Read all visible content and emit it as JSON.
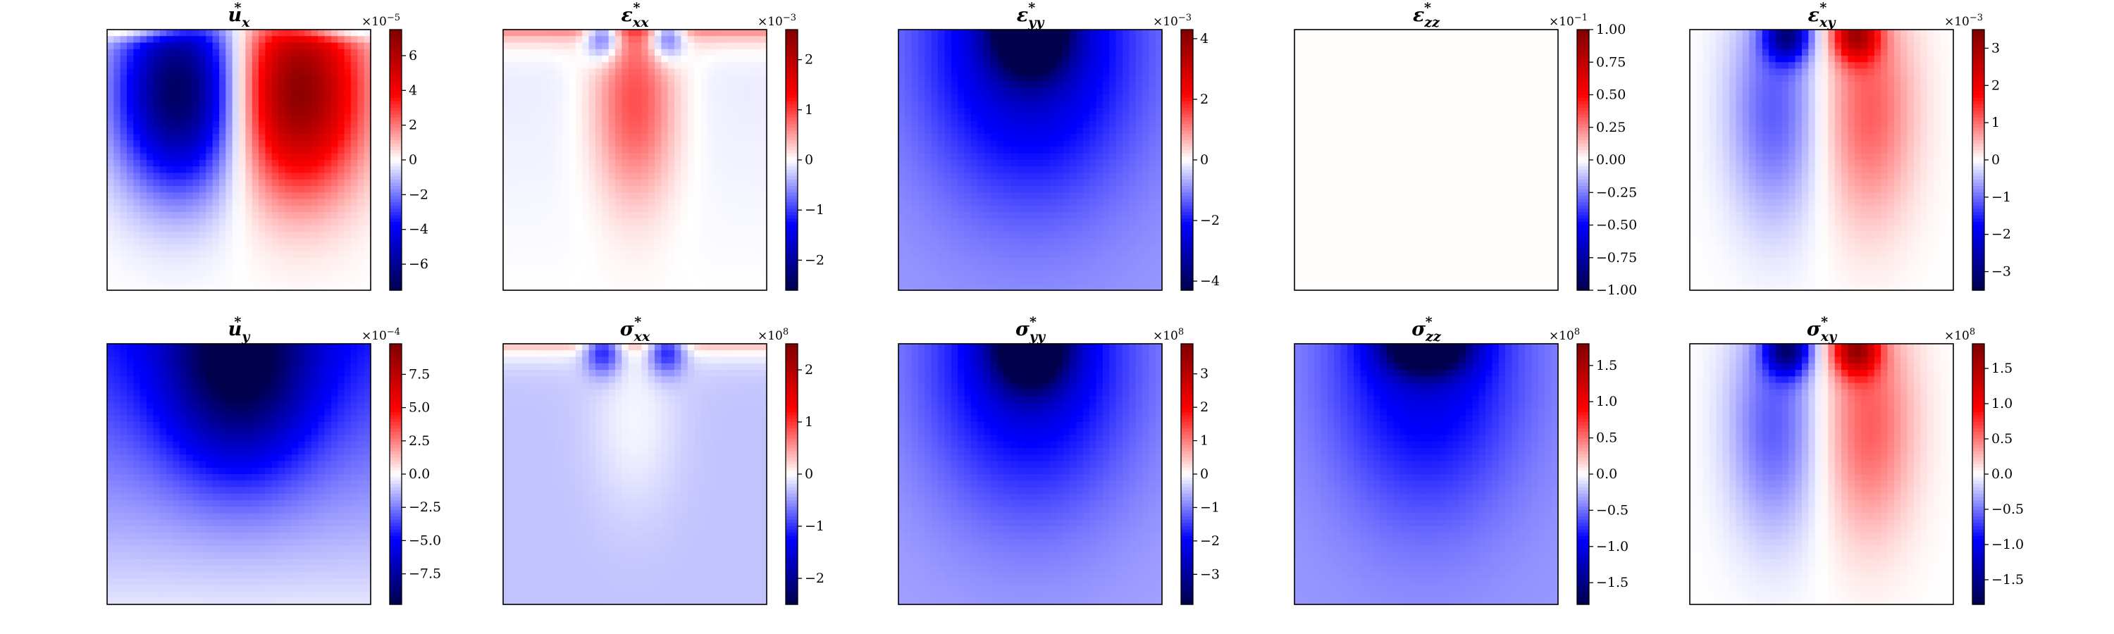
{
  "colormap": {
    "name": "seismic",
    "stops": [
      "#00004c",
      "#0000ff",
      "#ffffff",
      "#ff0000",
      "#7f0000"
    ]
  },
  "chart_data": [
    {
      "type": "heatmap",
      "field": "ux",
      "title": "u",
      "sub": "x",
      "sup": "*",
      "multiplier_label": "×10",
      "multiplier_exp": "−5",
      "clim": [
        -7.5,
        7.5
      ],
      "ticks": [
        -6,
        -4,
        -2,
        0,
        2,
        4,
        6
      ],
      "tick_labels": [
        "−6",
        "−4",
        "−2",
        "0",
        "2",
        "4",
        "6"
      ]
    },
    {
      "type": "heatmap",
      "field": "exx",
      "title": "ε",
      "sub": "xx",
      "sup": "*",
      "multiplier_label": "×10",
      "multiplier_exp": "−3",
      "clim": [
        -2.6,
        2.6
      ],
      "ticks": [
        -2,
        -1,
        0,
        1,
        2
      ],
      "tick_labels": [
        "−2",
        "−1",
        "0",
        "1",
        "2"
      ]
    },
    {
      "type": "heatmap",
      "field": "eyy",
      "title": "ε",
      "sub": "yy",
      "sup": "*",
      "multiplier_label": "×10",
      "multiplier_exp": "−3",
      "clim": [
        -4.3,
        4.3
      ],
      "ticks": [
        -4,
        -2,
        0,
        2,
        4
      ],
      "tick_labels": [
        "−4",
        "−2",
        "0",
        "2",
        "4"
      ]
    },
    {
      "type": "heatmap",
      "field": "ezz",
      "title": "ε",
      "sub": "zz",
      "sup": "*",
      "multiplier_label": "×10",
      "multiplier_exp": "−1",
      "clim": [
        -1.0,
        1.0
      ],
      "ticks": [
        -1.0,
        -0.75,
        -0.5,
        -0.25,
        0,
        0.25,
        0.5,
        0.75,
        1.0
      ],
      "tick_labels": [
        "−1.00",
        "−0.75",
        "−0.50",
        "−0.25",
        "0.00",
        "0.25",
        "0.50",
        "0.75",
        "1.00"
      ]
    },
    {
      "type": "heatmap",
      "field": "exy",
      "title": "ε",
      "sub": "xy",
      "sup": "*",
      "multiplier_label": "×10",
      "multiplier_exp": "−3",
      "clim": [
        -3.5,
        3.5
      ],
      "ticks": [
        -3,
        -2,
        -1,
        0,
        1,
        2,
        3
      ],
      "tick_labels": [
        "−3",
        "−2",
        "−1",
        "0",
        "1",
        "2",
        "3"
      ]
    },
    {
      "type": "heatmap",
      "field": "uy",
      "title": "u",
      "sub": "y",
      "sup": "*",
      "multiplier_label": "×10",
      "multiplier_exp": "−4",
      "clim": [
        -9.8,
        9.8
      ],
      "ticks": [
        -7.5,
        -5,
        -2.5,
        0,
        2.5,
        5,
        7.5
      ],
      "tick_labels": [
        "−7.5",
        "−5.0",
        "−2.5",
        "0.0",
        "2.5",
        "5.0",
        "7.5"
      ]
    },
    {
      "type": "heatmap",
      "field": "sxx",
      "title": "σ",
      "sub": "xx",
      "sup": "*",
      "multiplier_label": "×10",
      "multiplier_exp": "8",
      "clim": [
        -2.5,
        2.5
      ],
      "ticks": [
        -2,
        -1,
        0,
        1,
        2
      ],
      "tick_labels": [
        "−2",
        "−1",
        "0",
        "1",
        "2"
      ]
    },
    {
      "type": "heatmap",
      "field": "syy",
      "title": "σ",
      "sub": "yy",
      "sup": "*",
      "multiplier_label": "×10",
      "multiplier_exp": "8",
      "clim": [
        -3.9,
        3.9
      ],
      "ticks": [
        -3,
        -2,
        -1,
        0,
        1,
        2,
        3
      ],
      "tick_labels": [
        "−3",
        "−2",
        "−1",
        "0",
        "1",
        "2",
        "3"
      ]
    },
    {
      "type": "heatmap",
      "field": "szz",
      "title": "σ",
      "sub": "zz",
      "sup": "*",
      "multiplier_label": "×10",
      "multiplier_exp": "8",
      "clim": [
        -1.8,
        1.8
      ],
      "ticks": [
        -1.5,
        -1.0,
        -0.5,
        0,
        0.5,
        1.0,
        1.5
      ],
      "tick_labels": [
        "−1.5",
        "−1.0",
        "−0.5",
        "0.0",
        "0.5",
        "1.0",
        "1.5"
      ]
    },
    {
      "type": "heatmap",
      "field": "sxy",
      "title": "σ",
      "sub": "xy",
      "sup": "*",
      "multiplier_label": "×10",
      "multiplier_exp": "8",
      "clim": [
        -1.85,
        1.85
      ],
      "ticks": [
        -1.5,
        -1.0,
        -0.5,
        0,
        0.5,
        1.0,
        1.5
      ],
      "tick_labels": [
        "−1.5",
        "−1.0",
        "−0.5",
        "0.0",
        "0.5",
        "1.0",
        "1.5"
      ]
    }
  ]
}
